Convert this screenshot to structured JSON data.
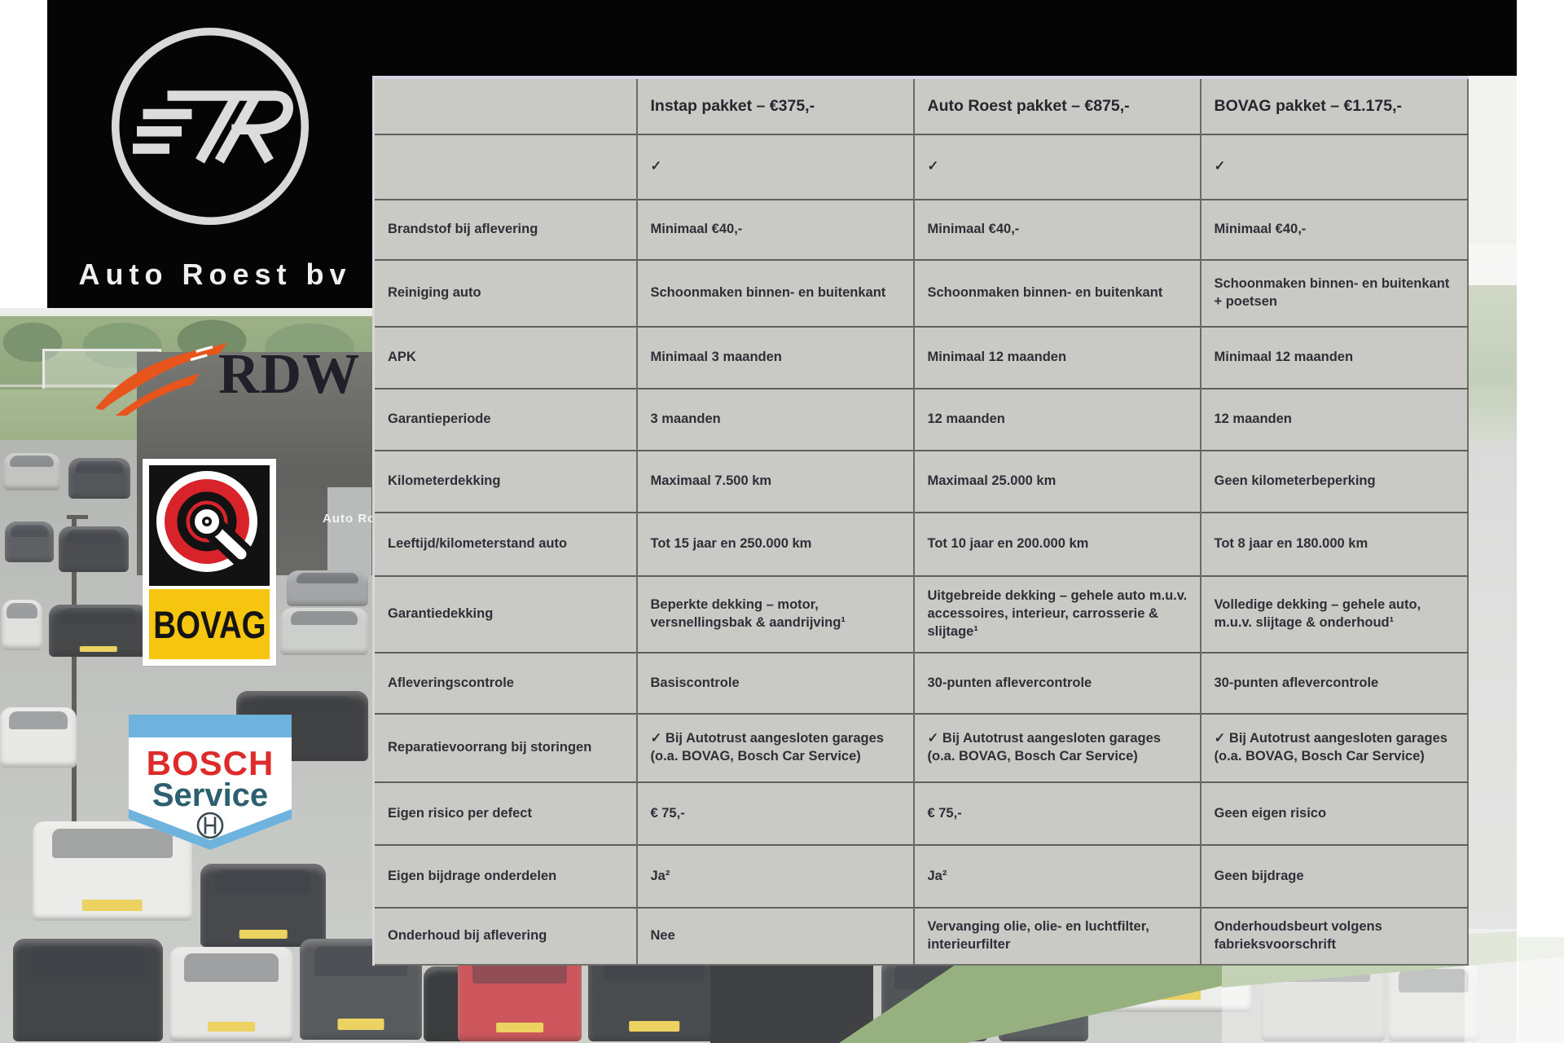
{
  "branding": {
    "company": "Auto Roest bv"
  },
  "background": {
    "signage": "Auto Ro"
  },
  "logos": {
    "rdw": {
      "text": "RDW"
    },
    "bovag": {
      "text": "BOVAG"
    },
    "bosch": {
      "line1": "BOSCH",
      "line2": "Service"
    }
  },
  "colors": {
    "black_panel": "#050505",
    "table_background": "#c9c9c6",
    "table_top_border": "#d7d1e3",
    "rdw_orange": "#e8551c",
    "bovag_red": "#d8232a",
    "bovag_yellow": "#f6c50f",
    "bosch_red": "#dd2b2b",
    "bosch_blue": "#6db3dd",
    "bosch_teal": "#2c6070"
  },
  "table": {
    "columns": [
      "",
      "Instap pakket – €375,-",
      "Auto Roest pakket – €875,-",
      "BOVAG pakket – €1.175,-"
    ],
    "rows": [
      {
        "label": "",
        "values": [
          "✓",
          "✓",
          "✓"
        ]
      },
      {
        "label": "Brandstof bij aflevering",
        "values": [
          "Minimaal €40,-",
          "Minimaal €40,-",
          "Minimaal €40,-"
        ]
      },
      {
        "label": "Reiniging auto",
        "values": [
          "Schoonmaken binnen- en buitenkant",
          "Schoonmaken binnen- en buitenkant",
          "Schoonmaken binnen- en buitenkant + poetsen"
        ]
      },
      {
        "label": "APK",
        "values": [
          "Minimaal 3 maanden",
          "Minimaal 12 maanden",
          "Minimaal 12 maanden"
        ]
      },
      {
        "label": "Garantieperiode",
        "values": [
          "3 maanden",
          "12 maanden",
          "12 maanden"
        ]
      },
      {
        "label": "Kilometerdekking",
        "values": [
          "Maximaal 7.500 km",
          "Maximaal 25.000 km",
          "Geen kilometerbeperking"
        ]
      },
      {
        "label": "Leeftijd/kilometerstand auto",
        "values": [
          "Tot 15 jaar en 250.000 km",
          "Tot 10 jaar en 200.000 km",
          "Tot 8 jaar en 180.000 km"
        ]
      },
      {
        "label": "Garantiedekking",
        "values": [
          "Beperkte dekking – motor, versnellingsbak & aandrijving¹",
          "Uitgebreide dekking – gehele auto m.u.v. accessoires, interieur, carrosserie & slijtage¹",
          "Volledige dekking – gehele auto, m.u.v. slijtage & onderhoud¹"
        ]
      },
      {
        "label": "Afleveringscontrole",
        "values": [
          "Basiscontrole",
          "30-punten aflevercontrole",
          "30-punten aflevercontrole"
        ]
      },
      {
        "label": "Reparatievoorrang bij storingen",
        "values": [
          "✓ Bij Autotrust aangesloten garages (o.a. BOVAG, Bosch Car Service)",
          "✓ Bij Autotrust aangesloten garages (o.a. BOVAG, Bosch Car Service)",
          "✓ Bij Autotrust aangesloten garages (o.a. BOVAG, Bosch Car Service)"
        ]
      },
      {
        "label": "Eigen risico per defect",
        "values": [
          "€ 75,-",
          "€ 75,-",
          "Geen eigen risico"
        ]
      },
      {
        "label": "Eigen bijdrage onderdelen",
        "values": [
          "Ja²",
          "Ja²",
          "Geen bijdrage"
        ]
      },
      {
        "label": "Onderhoud bij aflevering",
        "values": [
          "Nee",
          "Vervanging olie, olie- en luchtfilter, interieurfilter",
          "Onderhoudsbeurt volgens fabrieksvoorschrift"
        ]
      }
    ]
  }
}
